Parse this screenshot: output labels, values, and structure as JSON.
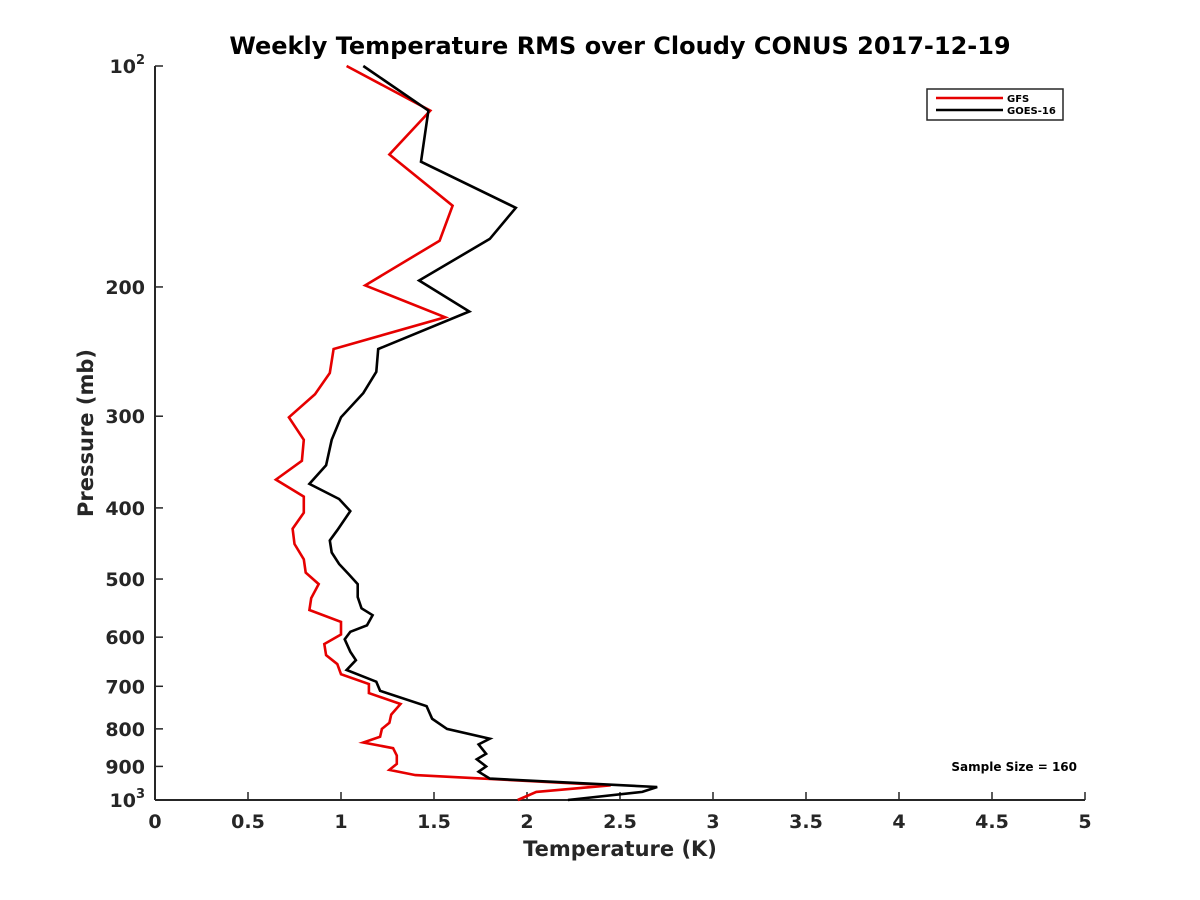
{
  "chart_data": {
    "type": "line",
    "title": "Weekly Temperature RMS over Cloudy CONUS 2017-12-19",
    "xlabel": "Temperature (K)",
    "ylabel": "Pressure (mb)",
    "xlim": [
      0,
      5
    ],
    "ylim": [
      100,
      1000
    ],
    "y_scale": "log",
    "y_reversed": true,
    "grid": false,
    "legend_position": "top-right",
    "x_ticks": [
      {
        "value": 0,
        "label": "0"
      },
      {
        "value": 0.5,
        "label": "0.5"
      },
      {
        "value": 1,
        "label": "1"
      },
      {
        "value": 1.5,
        "label": "1.5"
      },
      {
        "value": 2,
        "label": "2"
      },
      {
        "value": 2.5,
        "label": "2.5"
      },
      {
        "value": 3,
        "label": "3"
      },
      {
        "value": 3.5,
        "label": "3.5"
      },
      {
        "value": 4,
        "label": "4"
      },
      {
        "value": 4.5,
        "label": "4.5"
      },
      {
        "value": 5,
        "label": "5"
      }
    ],
    "y_ticks": [
      {
        "value": 100,
        "label": "10",
        "sup": "2"
      },
      {
        "value": 200,
        "label": "200"
      },
      {
        "value": 300,
        "label": "300"
      },
      {
        "value": 400,
        "label": "400"
      },
      {
        "value": 500,
        "label": "500"
      },
      {
        "value": 600,
        "label": "600"
      },
      {
        "value": 700,
        "label": "700"
      },
      {
        "value": 800,
        "label": "800"
      },
      {
        "value": 900,
        "label": "900"
      },
      {
        "value": 1000,
        "label": "10",
        "sup": "3"
      }
    ],
    "annotation": "Sample Size = 160",
    "series": [
      {
        "name": "GFS",
        "color": "#e60000",
        "points": [
          [
            1.03,
            100
          ],
          [
            1.48,
            115
          ],
          [
            1.26,
            132
          ],
          [
            1.6,
            155
          ],
          [
            1.53,
            173
          ],
          [
            1.13,
            199
          ],
          [
            1.56,
            220
          ],
          [
            0.96,
            243
          ],
          [
            0.94,
            262
          ],
          [
            0.86,
            280
          ],
          [
            0.72,
            301
          ],
          [
            0.8,
            323
          ],
          [
            0.79,
            345
          ],
          [
            0.65,
            366
          ],
          [
            0.8,
            386
          ],
          [
            0.8,
            406
          ],
          [
            0.74,
            427
          ],
          [
            0.75,
            448
          ],
          [
            0.8,
            470
          ],
          [
            0.81,
            490
          ],
          [
            0.88,
            508
          ],
          [
            0.84,
            531
          ],
          [
            0.83,
            551
          ],
          [
            1.0,
            572
          ],
          [
            1.0,
            595
          ],
          [
            0.91,
            613
          ],
          [
            0.92,
            635
          ],
          [
            0.98,
            653
          ],
          [
            1.0,
            674
          ],
          [
            1.15,
            695
          ],
          [
            1.15,
            715
          ],
          [
            1.32,
            740
          ],
          [
            1.27,
            765
          ],
          [
            1.26,
            785
          ],
          [
            1.22,
            800
          ],
          [
            1.21,
            820
          ],
          [
            1.12,
            835
          ],
          [
            1.28,
            850
          ],
          [
            1.3,
            870
          ],
          [
            1.3,
            893
          ],
          [
            1.26,
            910
          ],
          [
            1.4,
            925
          ],
          [
            2.45,
            955
          ],
          [
            2.05,
            975
          ],
          [
            1.95,
            1000
          ]
        ]
      },
      {
        "name": "GOES-16",
        "color": "#000000",
        "points": [
          [
            1.12,
            100
          ],
          [
            1.47,
            115
          ],
          [
            1.43,
            135
          ],
          [
            1.94,
            156
          ],
          [
            1.8,
            172
          ],
          [
            1.42,
            196
          ],
          [
            1.69,
            216
          ],
          [
            1.2,
            243
          ],
          [
            1.19,
            261
          ],
          [
            1.12,
            279
          ],
          [
            1.0,
            301
          ],
          [
            0.95,
            323
          ],
          [
            0.92,
            350
          ],
          [
            0.83,
            371
          ],
          [
            0.99,
            389
          ],
          [
            1.05,
            404
          ],
          [
            0.98,
            429
          ],
          [
            0.94,
            443
          ],
          [
            0.95,
            460
          ],
          [
            0.99,
            477
          ],
          [
            1.04,
            492
          ],
          [
            1.09,
            508
          ],
          [
            1.09,
            529
          ],
          [
            1.11,
            548
          ],
          [
            1.17,
            560
          ],
          [
            1.14,
            578
          ],
          [
            1.05,
            590
          ],
          [
            1.02,
            604
          ],
          [
            1.05,
            628
          ],
          [
            1.08,
            645
          ],
          [
            1.03,
            665
          ],
          [
            1.19,
            690
          ],
          [
            1.21,
            710
          ],
          [
            1.46,
            745
          ],
          [
            1.49,
            775
          ],
          [
            1.57,
            800
          ],
          [
            1.8,
            825
          ],
          [
            1.74,
            840
          ],
          [
            1.78,
            865
          ],
          [
            1.73,
            880
          ],
          [
            1.78,
            900
          ],
          [
            1.74,
            915
          ],
          [
            1.8,
            935
          ],
          [
            2.7,
            960
          ],
          [
            2.62,
            975
          ],
          [
            2.22,
            1000
          ]
        ]
      }
    ]
  }
}
